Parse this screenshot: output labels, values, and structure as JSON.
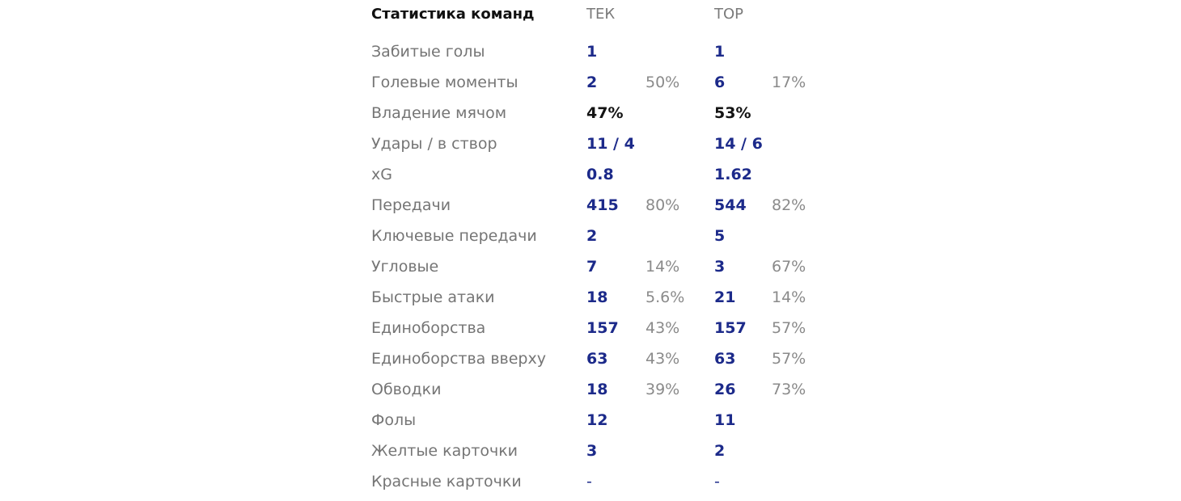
{
  "header": {
    "title": "Статистика команд",
    "team1": "ТЕК",
    "team2": "ТОР"
  },
  "rows": [
    {
      "label": "Забитые голы",
      "v1": "1",
      "p1": "",
      "v2": "1",
      "p2": ""
    },
    {
      "label": "Голевые моменты",
      "v1": "2",
      "p1": "50%",
      "v2": "6",
      "p2": "17%"
    },
    {
      "label": "Владение мячом",
      "v1": "47%",
      "p1": "",
      "v2": "53%",
      "p2": ""
    },
    {
      "label": "Удары / в створ",
      "v1": "11 / 4",
      "p1": "",
      "v2": "14 / 6",
      "p2": ""
    },
    {
      "label": "xG",
      "v1": "0.8",
      "p1": "",
      "v2": "1.62",
      "p2": ""
    },
    {
      "label": "Передачи",
      "v1": "415",
      "p1": "80%",
      "v2": "544",
      "p2": "82%"
    },
    {
      "label": "Ключевые передачи",
      "v1": "2",
      "p1": "",
      "v2": "5",
      "p2": ""
    },
    {
      "label": "Угловые",
      "v1": "7",
      "p1": "14%",
      "v2": "3",
      "p2": "67%"
    },
    {
      "label": "Быстрые атаки",
      "v1": "18",
      "p1": "5.6%",
      "v2": "21",
      "p2": "14%"
    },
    {
      "label": "Единоборства",
      "v1": "157",
      "p1": "43%",
      "v2": "157",
      "p2": "57%"
    },
    {
      "label": "Единоборства вверху",
      "v1": "63",
      "p1": "43%",
      "v2": "63",
      "p2": "57%"
    },
    {
      "label": "Обводки",
      "v1": "18",
      "p1": "39%",
      "v2": "26",
      "p2": "73%"
    },
    {
      "label": "Фолы",
      "v1": "12",
      "p1": "",
      "v2": "11",
      "p2": ""
    },
    {
      "label": "Желтые карточки",
      "v1": "3",
      "p1": "",
      "v2": "2",
      "p2": ""
    },
    {
      "label": "Красные карточки",
      "v1": "-",
      "p1": "",
      "v2": "-",
      "p2": ""
    }
  ],
  "colors": {
    "label": "#757575",
    "value": "#1c2a8a",
    "possession_value": "#141414",
    "percent": "#8a8a8a"
  }
}
